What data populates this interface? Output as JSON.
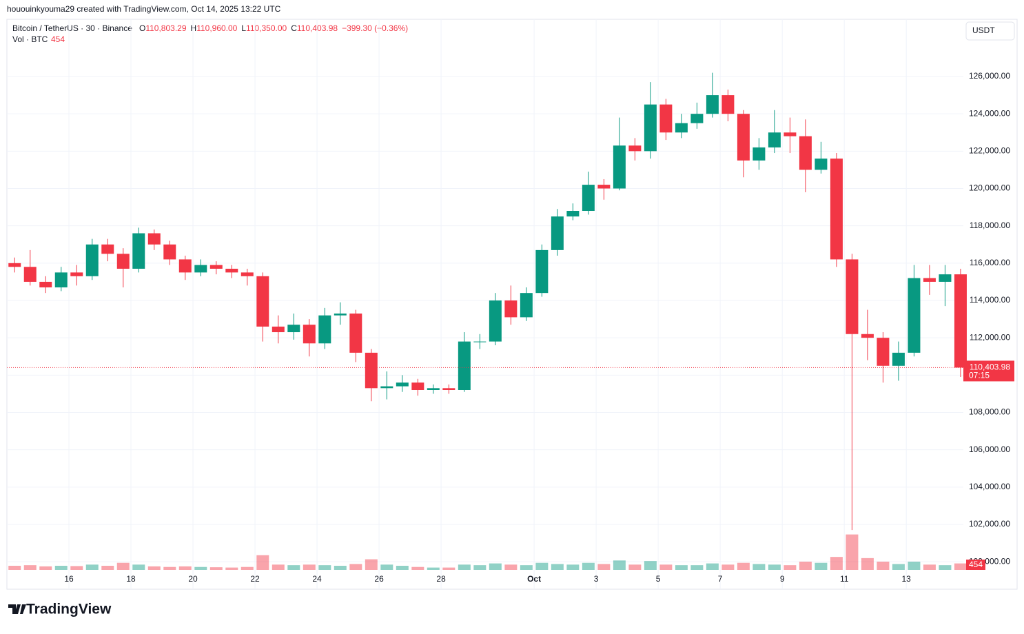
{
  "watermark": "hououinkyouma29 created with TradingView.com, Oct 14, 2025 13:22 UTC",
  "brand": "TradingView",
  "currency_button": "USDT",
  "chart_data": {
    "type": "candlestick",
    "header": {
      "symbol": "Bitcoin / TetherUS · 30 · Binance",
      "o_label": "O",
      "o": "110,803.29",
      "h_label": "H",
      "h": "110,960.00",
      "l_label": "L",
      "l": "110,350.00",
      "c_label": "C",
      "c": "110,403.98",
      "change": "−399.30 (−0.36%)",
      "vol_label": "Vol · BTC",
      "vol": "454"
    },
    "price_label": "110,403.98",
    "countdown": "07:15",
    "up_color": "#089981",
    "down_color": "#f23645",
    "grid": true,
    "xlim": [
      0,
      30.84
    ],
    "xticks": [
      {
        "value": 2,
        "label": "16"
      },
      {
        "value": 4,
        "label": "18"
      },
      {
        "value": 6,
        "label": "20"
      },
      {
        "value": 8,
        "label": "22"
      },
      {
        "value": 10,
        "label": "24"
      },
      {
        "value": 12,
        "label": "26"
      },
      {
        "value": 14,
        "label": "28"
      },
      {
        "value": 17,
        "label": "Oct"
      },
      {
        "value": 19,
        "label": "3"
      },
      {
        "value": 21,
        "label": "5"
      },
      {
        "value": 23,
        "label": "7"
      },
      {
        "value": 25,
        "label": "9"
      },
      {
        "value": 27,
        "label": "11"
      },
      {
        "value": 29,
        "label": "13"
      }
    ],
    "ylim": [
      98529,
      129065
    ],
    "yticks": [
      {
        "value": 100000,
        "label": "100,000.00"
      },
      {
        "value": 102000,
        "label": "102,000.00"
      },
      {
        "value": 104000,
        "label": "104,000.00"
      },
      {
        "value": 106000,
        "label": "106,000.00"
      },
      {
        "value": 108000,
        "label": "108,000.00"
      },
      {
        "value": 110000,
        "label": "110,000.00"
      },
      {
        "value": 112000,
        "label": "112,000.00"
      },
      {
        "value": 114000,
        "label": "114,000.00"
      },
      {
        "value": 116000,
        "label": "116,000.00"
      },
      {
        "value": 118000,
        "label": "118,000.00"
      },
      {
        "value": 120000,
        "label": "120,000.00"
      },
      {
        "value": 122000,
        "label": "122,000.00"
      },
      {
        "value": 124000,
        "label": "124,000.00"
      },
      {
        "value": 126000,
        "label": "126,000.00"
      }
    ],
    "vlim": [
      0,
      70000
    ],
    "x": [
      0,
      0.5,
      1,
      1.5,
      2,
      2.5,
      3,
      3.5,
      4,
      4.5,
      5,
      5.5,
      6,
      6.5,
      7,
      7.5,
      8,
      8.5,
      9,
      9.5,
      10,
      10.5,
      11,
      11.5,
      12,
      12.5,
      13,
      13.5,
      14,
      14.5,
      15,
      15.5,
      16,
      16.5,
      17,
      17.5,
      18,
      18.5,
      19,
      19.5,
      20,
      20.5,
      21,
      21.5,
      22,
      22.5,
      23,
      23.5,
      24,
      24.5,
      25,
      25.5,
      26,
      26.5,
      27,
      27.5,
      28,
      28.5,
      29,
      29.5,
      30,
      30.5
    ],
    "open": [
      116000,
      115800,
      115000,
      114700,
      115500,
      115300,
      117000,
      116500,
      115700,
      117600,
      117000,
      116200,
      115500,
      115900,
      115700,
      115500,
      115300,
      112600,
      112300,
      112700,
      111700,
      113200,
      113300,
      111200,
      109300,
      109400,
      109600,
      109200,
      109300,
      109200,
      111800,
      111800,
      114000,
      113100,
      114400,
      116700,
      118500,
      118800,
      120200,
      120000,
      122300,
      122000,
      124500,
      123000,
      123500,
      124000,
      125000,
      124000,
      121500,
      122200,
      123000,
      122800,
      121000,
      121600,
      116200,
      112200,
      112000,
      110500,
      111200,
      115200,
      115000,
      115400
    ],
    "high": [
      116300,
      116700,
      115300,
      115800,
      115900,
      117300,
      117300,
      116800,
      117900,
      117800,
      117200,
      116400,
      116200,
      116100,
      115900,
      115700,
      115500,
      113200,
      113300,
      113000,
      113600,
      113900,
      113500,
      111400,
      110200,
      110000,
      109800,
      109500,
      109500,
      112300,
      112200,
      114400,
      114800,
      114700,
      117000,
      118900,
      119200,
      120900,
      120500,
      123800,
      122700,
      125700,
      124800,
      124000,
      124600,
      126200,
      125300,
      124200,
      122700,
      124200,
      123800,
      123700,
      122500,
      121900,
      116500,
      113500,
      112300,
      111800,
      115900,
      115900,
      115900,
      115700
    ],
    "low": [
      115500,
      114800,
      114400,
      114500,
      114800,
      115100,
      116100,
      114700,
      115500,
      116700,
      115900,
      115100,
      115300,
      115400,
      115200,
      114800,
      111800,
      111700,
      111900,
      111000,
      111400,
      112700,
      110700,
      108600,
      108700,
      109100,
      108900,
      109000,
      109000,
      109100,
      111400,
      111600,
      112700,
      112900,
      114200,
      116400,
      118300,
      118600,
      119400,
      119900,
      121500,
      121600,
      122600,
      122700,
      123200,
      123800,
      123600,
      120600,
      121000,
      121900,
      121900,
      119800,
      120800,
      115800,
      101700,
      110800,
      109600,
      109700,
      111000,
      114300,
      113700,
      109900
    ],
    "close": [
      115800,
      115000,
      114700,
      115500,
      115300,
      117000,
      116500,
      115700,
      117600,
      117000,
      116200,
      115500,
      115900,
      115700,
      115500,
      115300,
      112600,
      112300,
      112700,
      111700,
      113200,
      113300,
      111200,
      109300,
      109400,
      109600,
      109200,
      109300,
      109200,
      111800,
      111800,
      114000,
      113100,
      114400,
      116700,
      118500,
      118800,
      120200,
      120000,
      122300,
      122000,
      124500,
      123000,
      123500,
      124000,
      125000,
      124000,
      121500,
      122200,
      123000,
      122800,
      121000,
      121600,
      116200,
      112200,
      112000,
      110500,
      111200,
      115200,
      115000,
      115400,
      110403.98
    ],
    "volume": [
      7000,
      8000,
      6000,
      7000,
      6500,
      9000,
      7000,
      12000,
      9000,
      6000,
      5000,
      6000,
      5000,
      4500,
      4000,
      5000,
      25000,
      9000,
      8000,
      9000,
      8000,
      7000,
      10000,
      18000,
      9000,
      7000,
      5000,
      4000,
      4000,
      9000,
      8000,
      11000,
      9000,
      8000,
      12000,
      10000,
      9000,
      12000,
      10000,
      16000,
      9000,
      15000,
      9000,
      8000,
      8000,
      11000,
      9000,
      12000,
      10000,
      9000,
      8000,
      14000,
      12000,
      22000,
      60000,
      20000,
      14000,
      10000,
      14000,
      9000,
      8000,
      11000
    ]
  }
}
